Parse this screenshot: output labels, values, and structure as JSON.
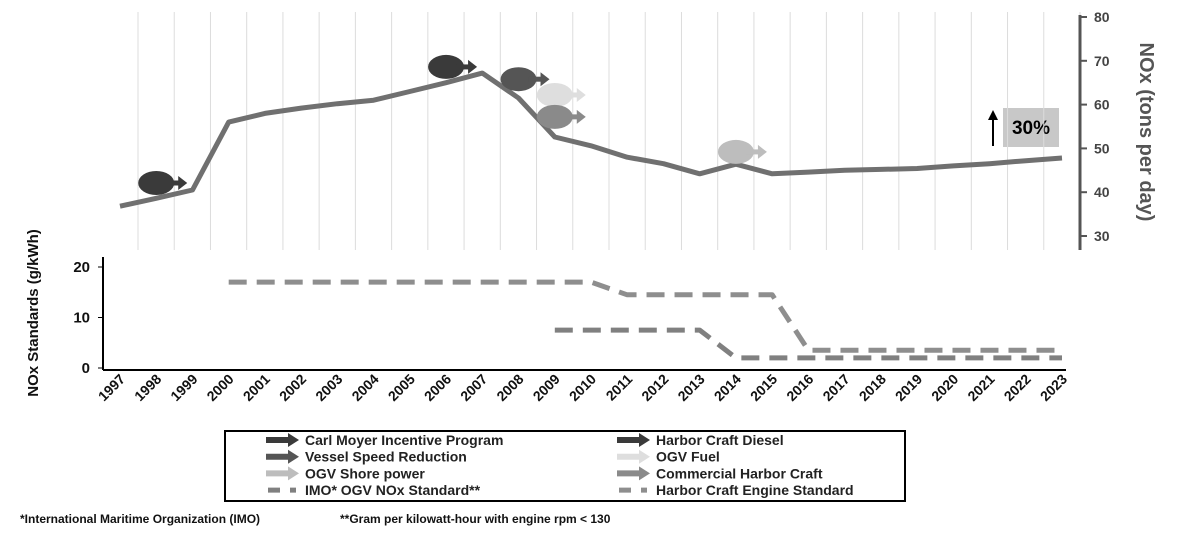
{
  "chart_data": {
    "type": "line",
    "x": [
      1997,
      1998,
      1999,
      2000,
      2001,
      2002,
      2003,
      2004,
      2005,
      2006,
      2007,
      2008,
      2009,
      2010,
      2011,
      2012,
      2013,
      2014,
      2015,
      2016,
      2017,
      2018,
      2019,
      2020,
      2021,
      2022,
      2023
    ],
    "ylabel": "NOx Standards (g/kWh)",
    "ylim": [
      0,
      20
    ],
    "yticks": [
      0,
      10,
      20
    ],
    "y2label": "NOx (tons per day)",
    "y2lim": [
      30,
      80
    ],
    "y2ticks": [
      30,
      40,
      50,
      60,
      70,
      80
    ],
    "grid": true,
    "series": [
      {
        "axis": "y2",
        "color": "#707070",
        "values": [
          36.8,
          38.6,
          40.5,
          56,
          58,
          59.2,
          60.2,
          61,
          63,
          65,
          67.2,
          61.5,
          52.6,
          50.6,
          48,
          46.5,
          44.2,
          46.4,
          44.2,
          44.6,
          45,
          45.2,
          45.4,
          46,
          46.5,
          47.2,
          47.8
        ]
      },
      {
        "type": "scatter",
        "axis": "y2",
        "name": "Carl Moyer Incentive Program",
        "color": "#3a3a3a",
        "x": [
          1998
        ],
        "values": [
          42.1
        ]
      },
      {
        "type": "scatter",
        "axis": "y2",
        "name": "Harbor Craft Diesel",
        "color": "#3a3a3a",
        "x": [
          2006
        ],
        "values": [
          68.6
        ]
      },
      {
        "type": "scatter",
        "axis": "y2",
        "name": "Vessel Speed Reduction",
        "color": "#555555",
        "x": [
          2008
        ],
        "values": [
          65.8
        ]
      },
      {
        "type": "scatter",
        "axis": "y2",
        "name": "OGV Fuel",
        "color": "#dedede",
        "x": [
          2009
        ],
        "values": [
          62.2
        ]
      },
      {
        "type": "scatter",
        "axis": "y2",
        "name": "OGV Shore power",
        "color": "#bdbdbd",
        "x": [
          2014
        ],
        "values": [
          49.2
        ]
      },
      {
        "type": "scatter",
        "axis": "y2",
        "name": "Commercial Harbor Craft",
        "color": "#8a8a8a",
        "x": [
          2009
        ],
        "values": [
          57.2
        ]
      },
      {
        "axis": "y",
        "dashed": true,
        "name": "IMO* OGV NOx Standard**",
        "color": "#808080",
        "values": [
          null,
          null,
          null,
          null,
          null,
          null,
          null,
          null,
          null,
          null,
          null,
          null,
          7.5,
          7.5,
          7.5,
          7.5,
          7.5,
          2,
          2,
          2,
          2,
          2,
          2,
          2,
          2,
          2,
          2
        ]
      },
      {
        "axis": "y",
        "dashed": true,
        "name": "Harbor Craft Engine Standard",
        "color": "#8e8e8e",
        "values": [
          null,
          null,
          null,
          17,
          17,
          17,
          17,
          17,
          17,
          17,
          17,
          17,
          17,
          17,
          14.5,
          14.5,
          14.5,
          14.5,
          14.5,
          3.5,
          3.5,
          3.5,
          3.5,
          3.5,
          3.5,
          3.5,
          3.5
        ]
      }
    ],
    "annotation": "30%",
    "notes": [
      "*International Maritime Organization (IMO)",
      "**Gram per kilowatt-hour with engine rpm < 130"
    ]
  }
}
